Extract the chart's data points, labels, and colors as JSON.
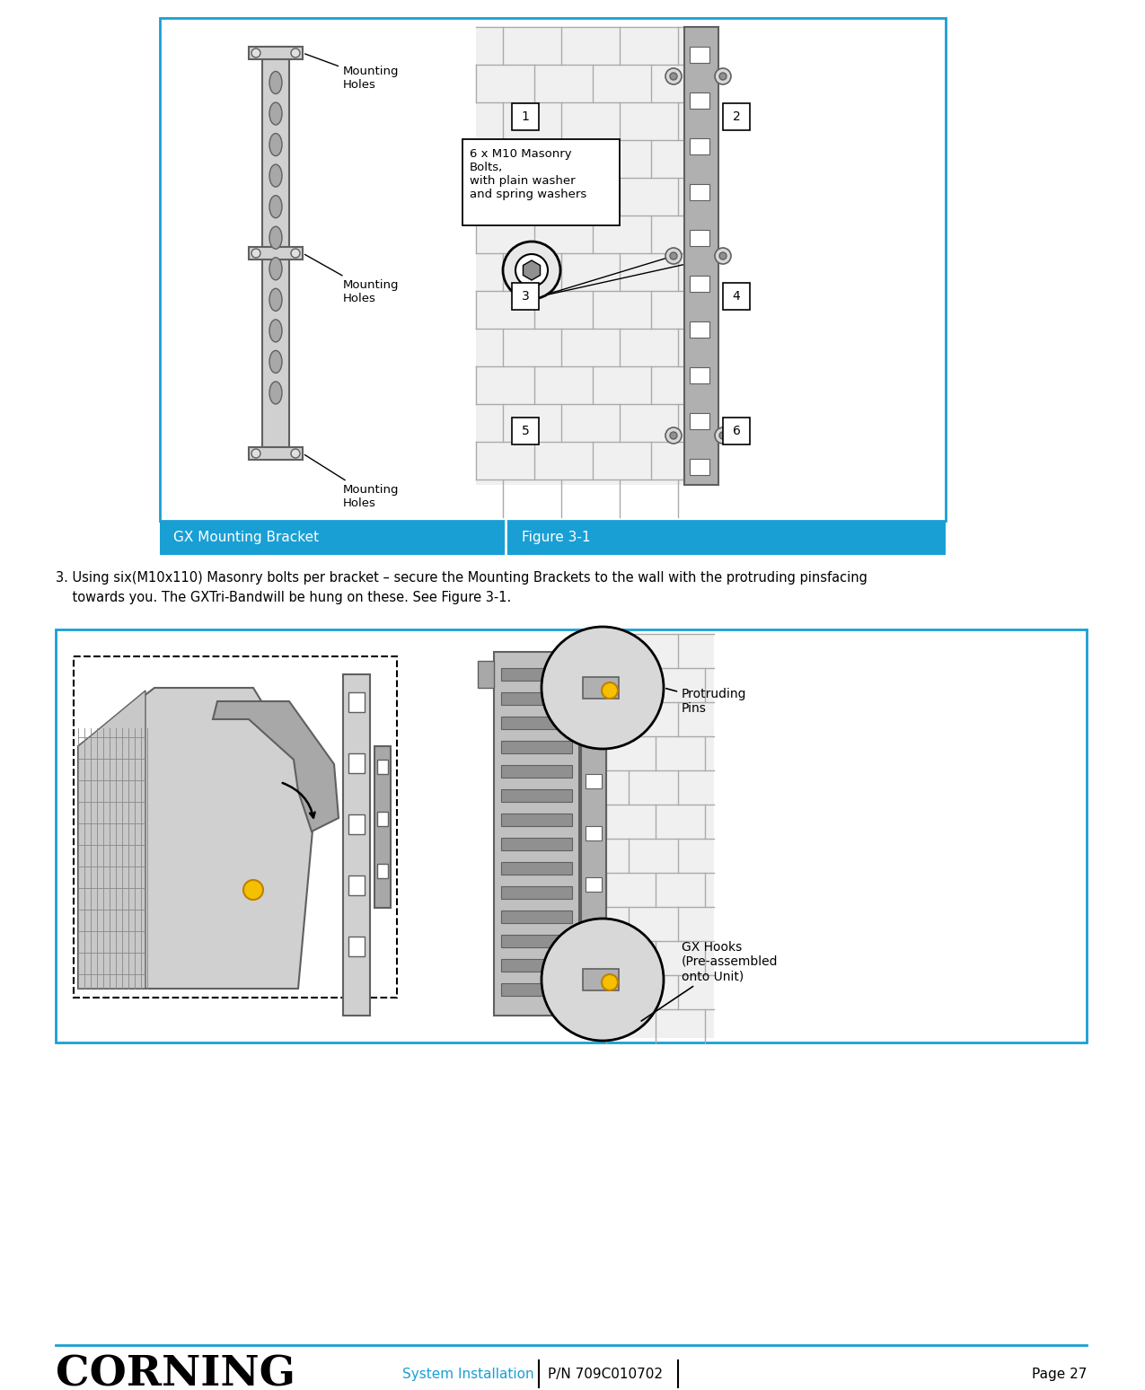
{
  "page_bg": "#ffffff",
  "border_color": "#1a9fd4",
  "caption_bg": "#1a9fd4",
  "caption_text_color": "#ffffff",
  "caption_left": "GX Mounting Bracket",
  "caption_right": "Figure 3-1",
  "body_text_line1": "3. Using six(M10x110) Masonry bolts per bracket – secure the Mounting Brackets to the wall with the protruding pinsfacing",
  "body_text_line2": "    towards you. The GXTri-Bandwill be hung on these. See Figure 3-1.",
  "label_bolt": "6 x M10 Masonry\nBolts,\nwith plain washer\nand spring washers",
  "label_mh1": "Mounting\nHoles",
  "label_mh2": "Mounting\nHoles",
  "label_mh3": "Mounting\nHoles",
  "label_protruding": "Protruding\nPins",
  "label_hooks": "GX Hooks\n(Pre-assembled\nonto Unit)",
  "nums": [
    "1",
    "2",
    "3",
    "4",
    "5",
    "6"
  ],
  "gray_light": "#d0d0d0",
  "gray_mid": "#a8a8a8",
  "gray_dark": "#606060",
  "gray_bracket": "#b0b0b0",
  "brick_bg": "#f0f0f0",
  "brick_line": "#aaaaaa",
  "yellow_pin": "#f5c000",
  "yellow_pin_edge": "#c08000",
  "footer_center_text": "System Installation",
  "footer_pn_text": "P/N 709C010702",
  "footer_page_text": "Page 27",
  "corning_text": "CORNING",
  "footer_blue": "#1a9fd4"
}
